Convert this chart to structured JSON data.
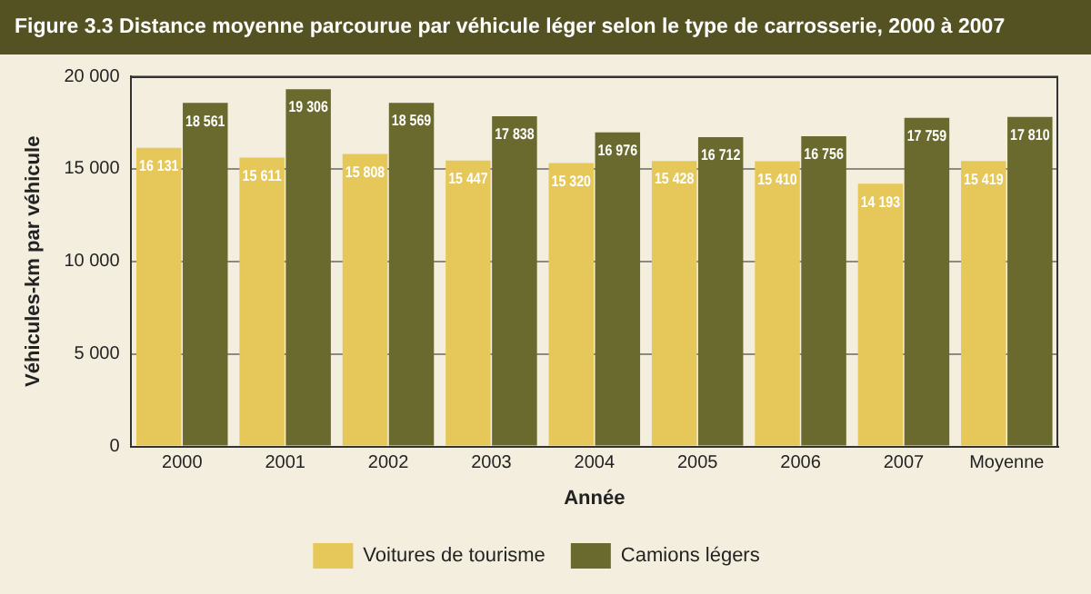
{
  "chart_data": {
    "type": "bar",
    "title": "Figure 3.3  Distance moyenne parcourue par véhicule léger selon le type de carrosserie, 2000 à 2007",
    "xlabel": "Année",
    "ylabel": "Véhicules-km par véhicule",
    "categories": [
      "2000",
      "2001",
      "2002",
      "2003",
      "2004",
      "2005",
      "2006",
      "2007",
      "Moyenne"
    ],
    "series": [
      {
        "name": "Voitures de tourisme",
        "color": "#e6c85a",
        "values": [
          16131,
          15611,
          15808,
          15447,
          15320,
          15428,
          15410,
          14193,
          15419
        ],
        "value_labels": [
          "16 131",
          "15 611",
          "15 808",
          "15 447",
          "15 320",
          "15 428",
          "15 410",
          "14 193",
          "15 419"
        ]
      },
      {
        "name": "Camions légers",
        "color": "#6b6a2e",
        "values": [
          18561,
          19306,
          18569,
          17838,
          16976,
          16712,
          16756,
          17759,
          17810
        ],
        "value_labels": [
          "18 561",
          "19 306",
          "18 569",
          "17 838",
          "16 976",
          "16 712",
          "16 756",
          "17 759",
          "17 810"
        ]
      }
    ],
    "ylim": [
      0,
      20000
    ],
    "yticks": [
      0,
      {
        "value": 5000,
        "label": "5 000"
      },
      {
        "value": 10000,
        "label": "10 000"
      },
      {
        "value": 15000,
        "label": "15 000"
      },
      {
        "value": 20000,
        "label": "20 000"
      }
    ],
    "grid": "y",
    "legend": "bottom"
  }
}
